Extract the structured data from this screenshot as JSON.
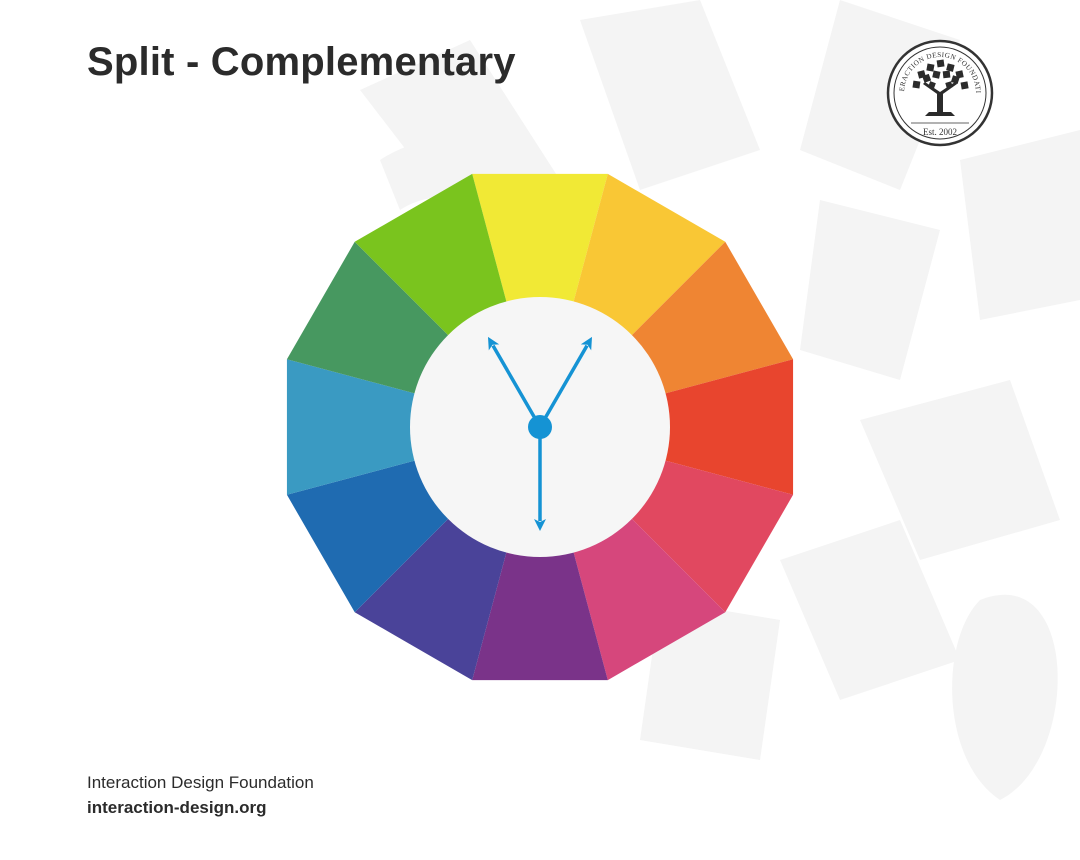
{
  "title": "Split - Complementary",
  "logo": {
    "name": "INTERACTION DESIGN FOUNDATION",
    "est": "Est. 2002"
  },
  "footer": {
    "org": "Interaction Design Foundation",
    "url": "interaction-design.org"
  },
  "wheel": {
    "segments": [
      {
        "name": "yellow",
        "color": "#F1E935"
      },
      {
        "name": "yellow-orange",
        "color": "#F9C735"
      },
      {
        "name": "orange",
        "color": "#EF8533"
      },
      {
        "name": "red-orange",
        "color": "#E8452E"
      },
      {
        "name": "red",
        "color": "#E14860"
      },
      {
        "name": "red-violet",
        "color": "#D6477C"
      },
      {
        "name": "violet",
        "color": "#7A3389"
      },
      {
        "name": "blue-violet",
        "color": "#4A4399"
      },
      {
        "name": "blue",
        "color": "#1F6BB1"
      },
      {
        "name": "blue-green",
        "color": "#3A9AC2"
      },
      {
        "name": "green",
        "color": "#479860"
      },
      {
        "name": "yellow-green",
        "color": "#7AC41E"
      }
    ],
    "inner_color": "#F6F6F6",
    "arrow_color": "#1593D4",
    "arrow_targets": [
      "violet",
      "yellow-green",
      "yellow-orange"
    ]
  }
}
